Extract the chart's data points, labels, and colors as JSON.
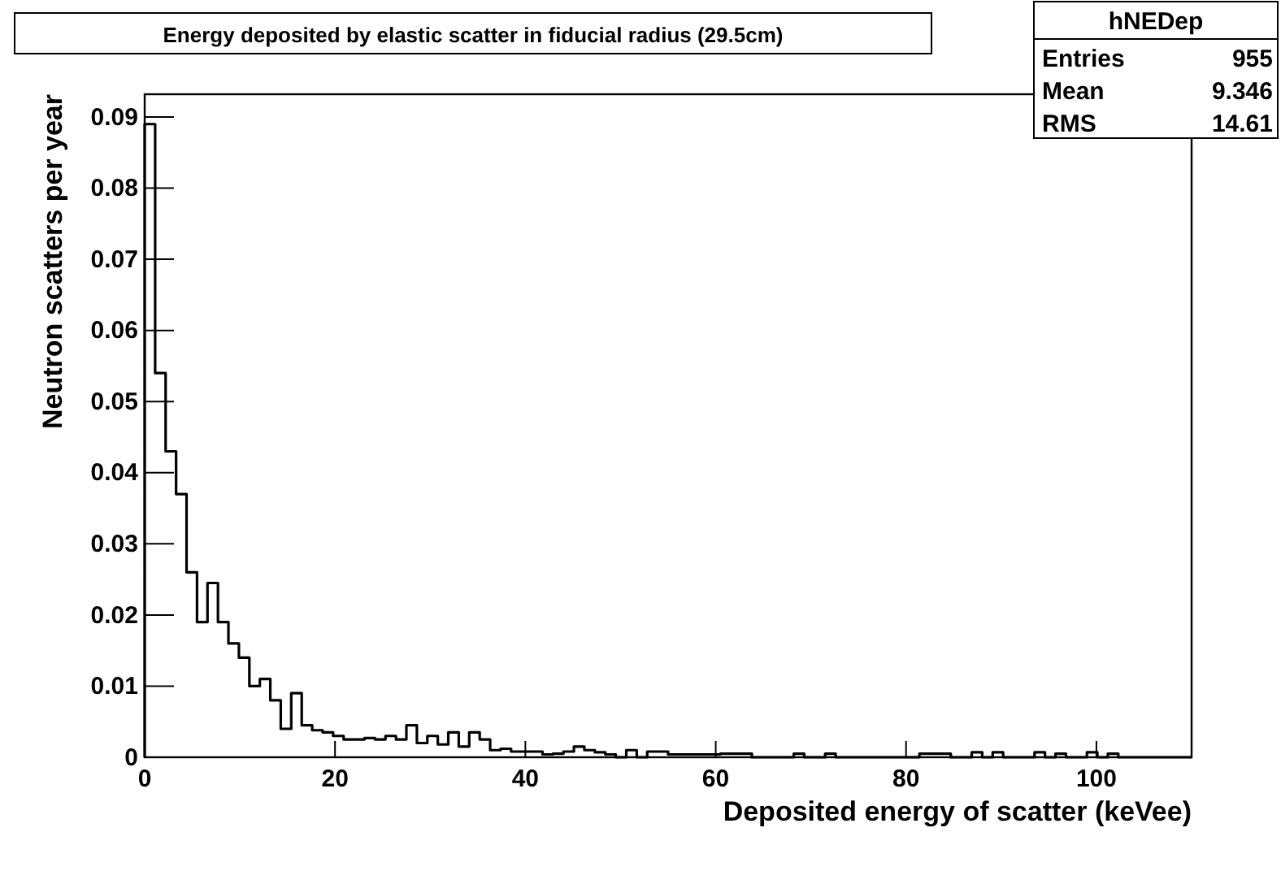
{
  "chart_data": {
    "type": "histogram",
    "title": "Energy deposited by elastic scatter in fiducial radius (29.5cm)",
    "xlabel": "Deposited energy of scatter (keVee)",
    "ylabel": "Neutron scatters per year",
    "color": "#000000",
    "bins": [
      0,
      1.1,
      2.2,
      3.3,
      4.4,
      5.5,
      6.6,
      7.7,
      8.8,
      9.9,
      11,
      12.1,
      13.2,
      14.3,
      15.4,
      16.5,
      17.6,
      18.7,
      19.8,
      20.9,
      22,
      23.1,
      24.2,
      25.3,
      26.4,
      27.5,
      28.6,
      29.7,
      30.8,
      31.9,
      33,
      34.1,
      35.2,
      36.3,
      37.4,
      38.5,
      39.6,
      40.7,
      41.8,
      42.9,
      44,
      45.1,
      46.2,
      47.3,
      48.4,
      49.5,
      50.6,
      51.7,
      52.8,
      53.9,
      55,
      56.1,
      57.2,
      58.3,
      59.4,
      60.5,
      61.6,
      62.7,
      63.8,
      64.9,
      66,
      67.1,
      68.2,
      69.3,
      70.4,
      71.5,
      72.6,
      73.7,
      74.8,
      75.9,
      77,
      78.1,
      79.2,
      80.3,
      81.4,
      82.5,
      83.6,
      84.7,
      85.8,
      86.9,
      88,
      89.1,
      90.2,
      91.3,
      92.4,
      93.5,
      94.6,
      95.7,
      96.8,
      97.9,
      99,
      100.1,
      101.2,
      102.3,
      103.4,
      104.5,
      105.6,
      106.7,
      107.8,
      108.9,
      110
    ],
    "values": [
      0.089,
      0.054,
      0.043,
      0.037,
      0.026,
      0.019,
      0.0245,
      0.019,
      0.016,
      0.014,
      0.01,
      0.011,
      0.008,
      0.004,
      0.009,
      0.0045,
      0.0038,
      0.0035,
      0.003,
      0.0025,
      0.0025,
      0.0027,
      0.0025,
      0.003,
      0.0025,
      0.0045,
      0.002,
      0.003,
      0.0018,
      0.0035,
      0.0015,
      0.0035,
      0.0025,
      0.001,
      0.0012,
      0.0008,
      0.0008,
      0.0008,
      0.0004,
      0.0005,
      0.0008,
      0.0015,
      0.001,
      0.0007,
      0.0004,
      0,
      0.001,
      0,
      0.0008,
      0.0008,
      0.0004,
      0.0004,
      0.0004,
      0.0004,
      0.0004,
      0.0005,
      0.0005,
      0.0005,
      0,
      0,
      0,
      0,
      0.0005,
      0,
      0,
      0.0005,
      0,
      0,
      0,
      0,
      0,
      0,
      0,
      0,
      0.0005,
      0.0005,
      0.0005,
      0,
      0,
      0.0007,
      0,
      0.0007,
      0,
      0,
      0,
      0.0007,
      0,
      0.0005,
      0,
      0,
      0.0007,
      0,
      0.0005,
      0,
      0,
      0,
      0,
      0,
      0,
      0
    ],
    "xlim": [
      0,
      110
    ],
    "xticks": [
      0,
      20,
      40,
      60,
      80,
      100
    ],
    "ylim": [
      0,
      0.0932
    ],
    "yticks": [
      0,
      0.01,
      0.02,
      0.03,
      0.04,
      0.05,
      0.06,
      0.07,
      0.08,
      0.09
    ],
    "grid": false,
    "annotations": [
      "hNEDep",
      "Entries",
      "955",
      "Mean",
      "9.346",
      "RMS",
      "14.61"
    ]
  }
}
